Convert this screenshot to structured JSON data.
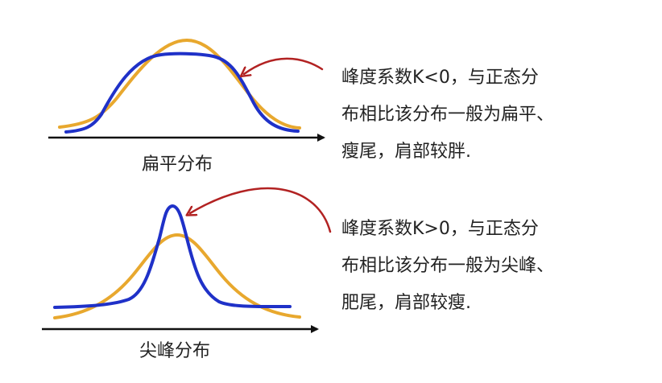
{
  "colors": {
    "normal_curve": "#e8a82e",
    "sample_curve": "#1f31c8",
    "arrow": "#b22222",
    "axis": "#111111",
    "text": "#222222"
  },
  "top_panel": {
    "caption": "扁平分布",
    "description_lines": [
      "峰度系数K<0，与正态分",
      "布相比该分布一般为扁平、",
      "瘦尾，肩部较胖."
    ]
  },
  "bottom_panel": {
    "caption": "尖峰分布",
    "description_lines": [
      "峰度系数K>0，与正态分",
      "布相比该分布一般为尖峰、",
      "肥尾，肩部较瘦."
    ]
  }
}
